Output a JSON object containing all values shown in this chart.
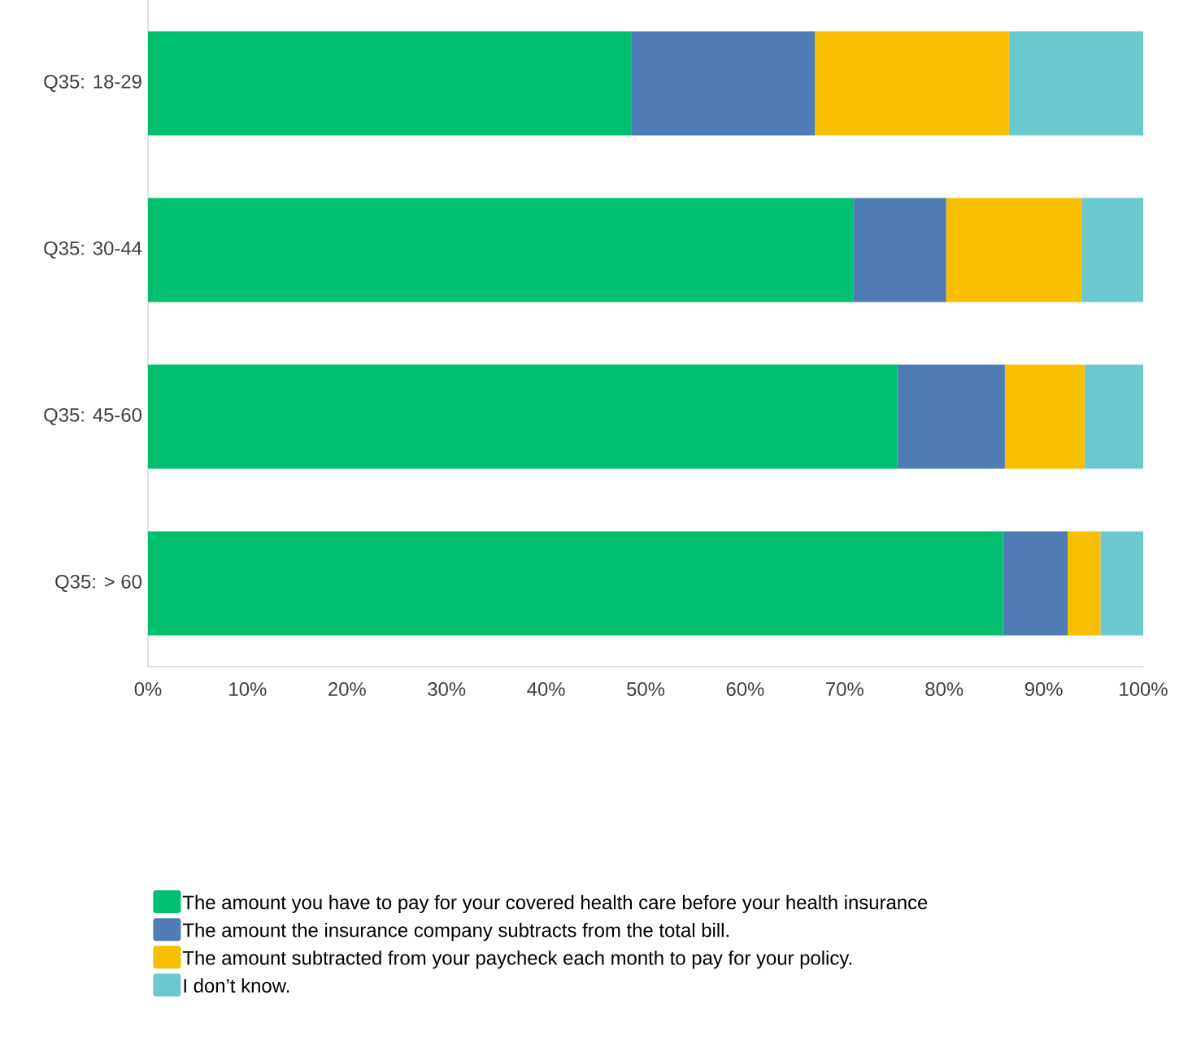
{
  "chart_data": {
    "type": "bar",
    "orientation": "horizontal",
    "stacked": true,
    "categories": [
      "Q35: 18-29",
      "Q35: 30-44",
      "Q35: 45-60",
      "Q35: > 60"
    ],
    "series": [
      {
        "name": "The amount you have to pay for your covered health care before your health insurance",
        "color": "#00bf6f",
        "values": [
          48.6,
          70.9,
          75.3,
          85.9
        ]
      },
      {
        "name": "The amount the insurance company subtracts from the total bill.",
        "color": "#507cb6",
        "values": [
          18.4,
          9.3,
          10.8,
          6.5
        ]
      },
      {
        "name": "The amount subtracted from your paycheck each month to pay for your policy.",
        "color": "#f9be00",
        "values": [
          19.5,
          13.6,
          8.0,
          3.3
        ]
      },
      {
        "name": "I don’t know.",
        "color": "#6bc8cd",
        "values": [
          13.5,
          6.2,
          5.9,
          4.3
        ]
      }
    ],
    "xlim": [
      0,
      100
    ],
    "xticks": [
      {
        "value": 0,
        "label": "0%"
      },
      {
        "value": 10,
        "label": "10%"
      },
      {
        "value": 20,
        "label": "20%"
      },
      {
        "value": 30,
        "label": "30%"
      },
      {
        "value": 40,
        "label": "40%"
      },
      {
        "value": 50,
        "label": "50%"
      },
      {
        "value": 60,
        "label": "60%"
      },
      {
        "value": 70,
        "label": "70%"
      },
      {
        "value": 80,
        "label": "80%"
      },
      {
        "value": 90,
        "label": "90%"
      },
      {
        "value": 100,
        "label": "100%"
      }
    ],
    "legend": "bottom"
  }
}
